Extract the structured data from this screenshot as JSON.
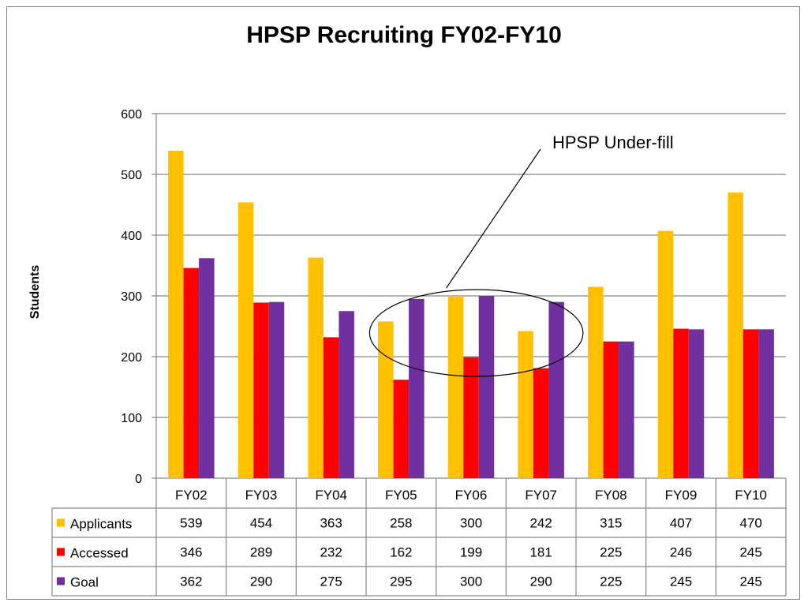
{
  "chart_data": {
    "type": "bar",
    "title": "HPSP Recruiting FY02-FY10",
    "ylabel": "Students",
    "ylim": [
      0,
      600
    ],
    "yticks": [
      0,
      100,
      200,
      300,
      400,
      500,
      600
    ],
    "grid": true,
    "categories": [
      "FY02",
      "FY03",
      "FY04",
      "FY05",
      "FY06",
      "FY07",
      "FY08",
      "FY09",
      "FY10"
    ],
    "series": [
      {
        "name": "Applicants",
        "color": "#FFC000",
        "values": [
          539,
          454,
          363,
          258,
          300,
          242,
          315,
          407,
          470
        ]
      },
      {
        "name": "Accessed",
        "color": "#FF0000",
        "values": [
          346,
          289,
          232,
          162,
          199,
          181,
          225,
          246,
          245
        ]
      },
      {
        "name": "Goal",
        "color": "#7030A0",
        "values": [
          362,
          290,
          275,
          295,
          300,
          290,
          225,
          245,
          245
        ]
      }
    ],
    "annotation": {
      "text": "HPSP Under-fill",
      "highlighted_categories": [
        "FY05",
        "FY06",
        "FY07"
      ]
    },
    "data_table": true,
    "legend_placement": "data-table-left"
  }
}
